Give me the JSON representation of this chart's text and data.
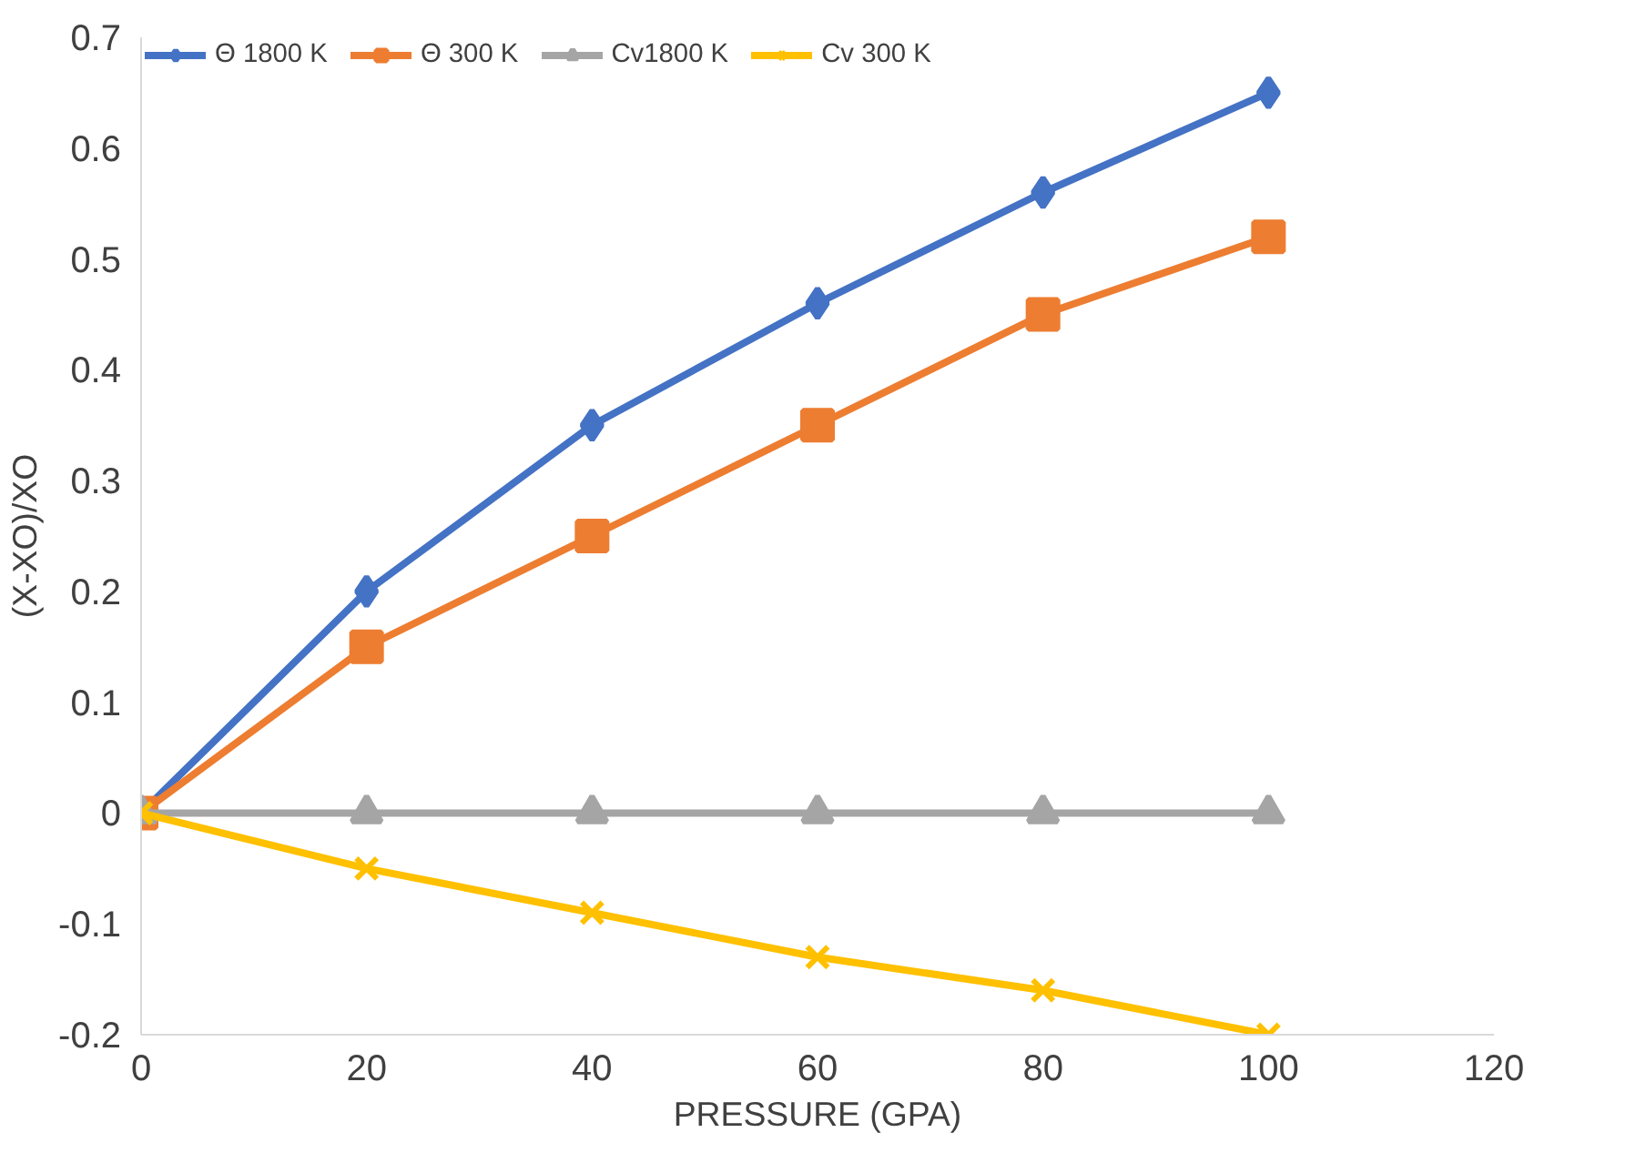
{
  "chart_data": {
    "type": "line",
    "xlabel": "PRESSURE (GPA)",
    "ylabel": "(X-XO)/XO",
    "x": [
      0,
      20,
      40,
      60,
      80,
      100
    ],
    "series": [
      {
        "name": "Θ 1800 K",
        "color": "#4472c4",
        "marker": "diamond",
        "values": [
          0,
          0.2,
          0.35,
          0.46,
          0.56,
          0.65
        ]
      },
      {
        "name": "Θ 300 K",
        "color": "#ed7d31",
        "marker": "square",
        "values": [
          0,
          0.15,
          0.25,
          0.35,
          0.45,
          0.52
        ]
      },
      {
        "name": "Cv1800 K",
        "color": "#a5a5a5",
        "marker": "triangle",
        "values": [
          0,
          0,
          0,
          0,
          0,
          0
        ]
      },
      {
        "name": "Cv 300 K",
        "color": "#ffc000",
        "marker": "cross",
        "values": [
          0,
          -0.05,
          -0.09,
          -0.13,
          -0.16,
          -0.2
        ]
      }
    ],
    "xlim": [
      0,
      120
    ],
    "xticks": [
      0,
      20,
      40,
      60,
      80,
      100,
      120
    ],
    "ylim": [
      -0.2,
      0.7
    ],
    "yticks": [
      -0.2,
      -0.1,
      0,
      0.1,
      0.2,
      0.3,
      0.4,
      0.5,
      0.6,
      0.7
    ],
    "grid": false,
    "legend": "top left",
    "line_style": "solid"
  }
}
